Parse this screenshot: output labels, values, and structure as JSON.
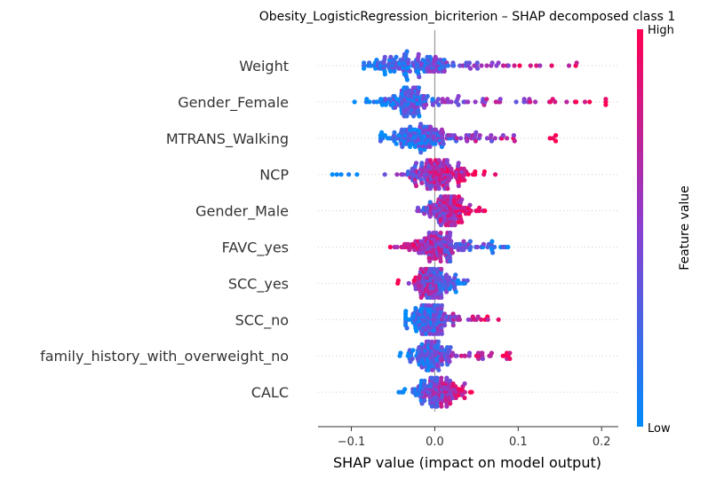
{
  "chart_data": {
    "type": "scatter",
    "subtype": "shap-beeswarm",
    "title": "Obesity_LogisticRegression_bicriterion – SHAP decomposed class 1",
    "xlabel": "SHAP value (impact on model output)",
    "xlim": [
      -0.14,
      0.22
    ],
    "xticks": [
      -0.1,
      0.0,
      0.1,
      0.2
    ],
    "xtick_labels": [
      "−0.1",
      "0.0",
      "0.1",
      "0.2"
    ],
    "grid": false,
    "colorbar": {
      "title": "Feature value",
      "high_label": "High",
      "low_label": "Low",
      "low_color": "#008bfb",
      "high_color": "#ff0052"
    },
    "features": [
      {
        "name": "Weight",
        "min": -0.085,
        "max": 0.17,
        "center": -0.03,
        "spread": 0.05,
        "corr": 1
      },
      {
        "name": "Gender_Female",
        "min": -0.1,
        "max": 0.205,
        "center": -0.035,
        "spread": 0.03,
        "corr": 1
      },
      {
        "name": "MTRANS_Walking",
        "min": -0.065,
        "max": 0.145,
        "center": -0.02,
        "spread": 0.035,
        "corr": 1
      },
      {
        "name": "NCP",
        "min": -0.125,
        "max": 0.075,
        "center": -0.005,
        "spread": 0.035,
        "corr": 1
      },
      {
        "name": "Gender_Male",
        "min": -0.06,
        "max": 0.06,
        "center": 0.012,
        "spread": 0.02,
        "corr": 1
      },
      {
        "name": "FAVC_yes",
        "min": -0.06,
        "max": 0.095,
        "center": -0.005,
        "spread": 0.03,
        "corr": -1
      },
      {
        "name": "SCC_yes",
        "min": -0.055,
        "max": 0.045,
        "center": -0.005,
        "spread": 0.02,
        "corr": -1
      },
      {
        "name": "SCC_no",
        "min": -0.035,
        "max": 0.08,
        "center": -0.01,
        "spread": 0.02,
        "corr": 1
      },
      {
        "name": "family_history_with_overweight_no",
        "min": -0.045,
        "max": 0.09,
        "center": -0.008,
        "spread": 0.02,
        "corr": 1
      },
      {
        "name": "CALC",
        "min": -0.045,
        "max": 0.05,
        "center": 0.0,
        "spread": 0.018,
        "corr": 1
      }
    ]
  }
}
